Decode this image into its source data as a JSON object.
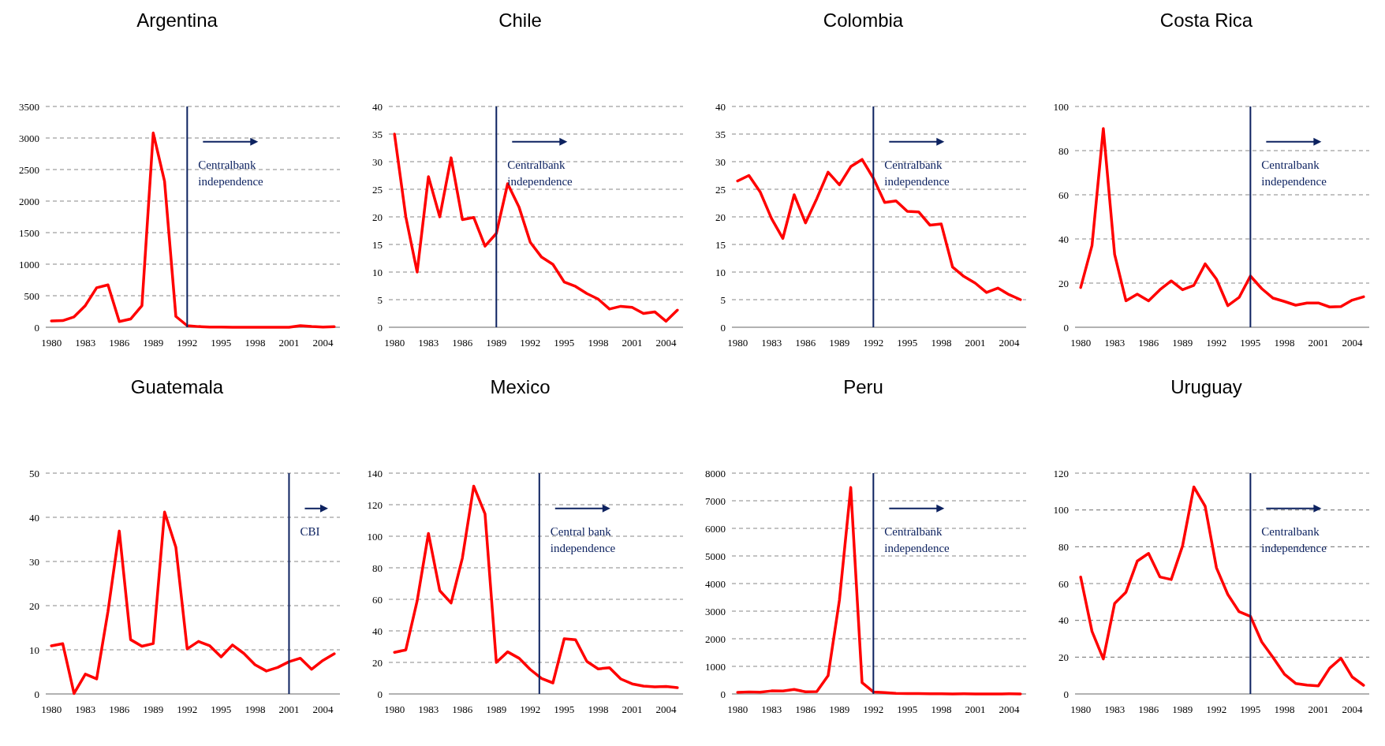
{
  "chart_data": [
    {
      "type": "line",
      "title": "Argentina",
      "x": [
        1980,
        1981,
        1982,
        1983,
        1984,
        1985,
        1986,
        1987,
        1988,
        1989,
        1990,
        1991,
        1992,
        1993,
        1994,
        1995,
        1996,
        1997,
        1998,
        1999,
        2000,
        2001,
        2002,
        2003,
        2004,
        2005
      ],
      "series": [
        {
          "color": "#ff0000",
          "values": [
            100,
            105,
            165,
            345,
            627,
            672,
            90,
            131,
            343,
            3080,
            2314,
            172,
            25,
            11,
            4,
            3,
            0,
            0,
            1,
            0,
            0,
            0,
            26,
            13,
            4,
            10
          ]
        }
      ],
      "xlim": [
        1979.5,
        2005.5
      ],
      "xticks": [
        1980,
        1983,
        1986,
        1989,
        1992,
        1995,
        1998,
        2001,
        2004
      ],
      "ylim": [
        0,
        3500
      ],
      "yticks": [
        0,
        500,
        1000,
        1500,
        2000,
        2500,
        3000,
        3500
      ],
      "grid": "y",
      "ref_lines": [
        {
          "axis": "x",
          "value": 1992,
          "label": "Centralbank independence",
          "color": "#0d2260"
        }
      ]
    },
    {
      "type": "line",
      "title": "Chile",
      "x": [
        1980,
        1981,
        1982,
        1983,
        1984,
        1985,
        1986,
        1987,
        1988,
        1989,
        1990,
        1991,
        1992,
        1993,
        1994,
        1995,
        1996,
        1997,
        1998,
        1999,
        2000,
        2001,
        2002,
        2003,
        2004,
        2005
      ],
      "series": [
        {
          "color": "#ff0000",
          "values": [
            35,
            20,
            10,
            27.3,
            20,
            30.7,
            19.5,
            19.9,
            14.7,
            17,
            26,
            21.8,
            15.4,
            12.7,
            11.4,
            8.2,
            7.4,
            6.1,
            5.1,
            3.3,
            3.8,
            3.6,
            2.5,
            2.8,
            1.1,
            3.1
          ]
        }
      ],
      "xlim": [
        1979.5,
        2005.5
      ],
      "xticks": [
        1980,
        1983,
        1986,
        1989,
        1992,
        1995,
        1998,
        2001,
        2004
      ],
      "ylim": [
        0,
        40
      ],
      "yticks": [
        0,
        5,
        10,
        15,
        20,
        25,
        30,
        35,
        40
      ],
      "grid": "y",
      "ref_lines": [
        {
          "axis": "x",
          "value": 1989,
          "label": "Centralbank independence",
          "color": "#0d2260"
        }
      ]
    },
    {
      "type": "line",
      "title": "Colombia",
      "x": [
        1980,
        1981,
        1982,
        1983,
        1984,
        1985,
        1986,
        1987,
        1988,
        1989,
        1990,
        1991,
        1992,
        1993,
        1994,
        1995,
        1996,
        1997,
        1998,
        1999,
        2000,
        2001,
        2002,
        2003,
        2004,
        2005
      ],
      "series": [
        {
          "color": "#ff0000",
          "values": [
            26.5,
            27.5,
            24.5,
            19.7,
            16.1,
            24,
            18.9,
            23.3,
            28.1,
            25.8,
            29.1,
            30.4,
            27,
            22.6,
            22.9,
            21,
            20.9,
            18.5,
            18.7,
            10.9,
            9.2,
            8,
            6.3,
            7.1,
            5.9,
            5
          ]
        }
      ],
      "xlim": [
        1979.5,
        2005.5
      ],
      "xticks": [
        1980,
        1983,
        1986,
        1989,
        1992,
        1995,
        1998,
        2001,
        2004
      ],
      "ylim": [
        0,
        40
      ],
      "yticks": [
        0,
        5,
        10,
        15,
        20,
        25,
        30,
        35,
        40
      ],
      "grid": "y",
      "ref_lines": [
        {
          "axis": "x",
          "value": 1992,
          "label": "Centralbank independence",
          "color": "#0d2260"
        }
      ]
    },
    {
      "type": "line",
      "title": "Costa Rica",
      "x": [
        1980,
        1981,
        1982,
        1983,
        1984,
        1985,
        1986,
        1987,
        1988,
        1989,
        1990,
        1991,
        1992,
        1993,
        1994,
        1995,
        1996,
        1997,
        1998,
        1999,
        2000,
        2001,
        2002,
        2003,
        2004,
        2005
      ],
      "series": [
        {
          "color": "#ff0000",
          "values": [
            18,
            37,
            90,
            33,
            12,
            15,
            12,
            17,
            21,
            17,
            19,
            28.7,
            21.8,
            9.8,
            13.5,
            23.2,
            17.5,
            13.2,
            11.7,
            10,
            11,
            11,
            9.2,
            9.4,
            12.3,
            13.8
          ]
        }
      ],
      "xlim": [
        1979.5,
        2005.5
      ],
      "xticks": [
        1980,
        1983,
        1986,
        1989,
        1992,
        1995,
        1998,
        2001,
        2004
      ],
      "ylim": [
        0,
        100
      ],
      "yticks": [
        0,
        20,
        40,
        60,
        80,
        100
      ],
      "grid": "y",
      "ref_lines": [
        {
          "axis": "x",
          "value": 1995,
          "label": "Centralbank independence",
          "color": "#0d2260"
        }
      ]
    },
    {
      "type": "line",
      "title": "Guatemala",
      "x": [
        1980,
        1981,
        1982,
        1983,
        1984,
        1985,
        1986,
        1987,
        1988,
        1989,
        1990,
        1991,
        1992,
        1993,
        1994,
        1995,
        1996,
        1997,
        1998,
        1999,
        2000,
        2001,
        2002,
        2003,
        2004,
        2005
      ],
      "series": [
        {
          "color": "#ff0000",
          "values": [
            10.9,
            11.4,
            0.1,
            4.5,
            3.4,
            18.7,
            36.9,
            12.3,
            10.8,
            11.4,
            41.2,
            33.2,
            10.2,
            11.9,
            10.9,
            8.4,
            11.1,
            9.2,
            6.6,
            5.2,
            6,
            7.3,
            8.1,
            5.6,
            7.6,
            9.1
          ]
        }
      ],
      "xlim": [
        1979.5,
        2005.5
      ],
      "xticks": [
        1980,
        1983,
        1986,
        1989,
        1992,
        1995,
        1998,
        2001,
        2004
      ],
      "ylim": [
        0,
        50
      ],
      "yticks": [
        0,
        10,
        20,
        30,
        40,
        50
      ],
      "grid": "y",
      "ref_lines": [
        {
          "axis": "x",
          "value": 2001,
          "label": "CBI",
          "color": "#0d2260"
        }
      ]
    },
    {
      "type": "line",
      "title": "Mexico",
      "x": [
        1980,
        1981,
        1982,
        1983,
        1984,
        1985,
        1986,
        1987,
        1988,
        1989,
        1990,
        1991,
        1992,
        1993,
        1994,
        1995,
        1996,
        1997,
        1998,
        1999,
        2000,
        2001,
        2002,
        2003,
        2004,
        2005
      ],
      "series": [
        {
          "color": "#ff0000",
          "values": [
            26.4,
            27.9,
            58.9,
            101.8,
            65.5,
            57.7,
            86.2,
            131.8,
            114.2,
            20,
            26.7,
            22.7,
            15.5,
            9.8,
            7,
            35,
            34.4,
            20.6,
            15.9,
            16.6,
            9.5,
            6.4,
            5,
            4.5,
            4.7,
            4
          ]
        }
      ],
      "xlim": [
        1979.5,
        2005.5
      ],
      "xticks": [
        1980,
        1983,
        1986,
        1989,
        1992,
        1995,
        1998,
        2001,
        2004
      ],
      "ylim": [
        0,
        140
      ],
      "yticks": [
        0,
        20,
        40,
        60,
        80,
        100,
        120,
        140
      ],
      "grid": "y",
      "ref_lines": [
        {
          "axis": "x",
          "value": 1992.8,
          "label": "Central bank independence",
          "color": "#0d2260"
        }
      ]
    },
    {
      "type": "line",
      "title": "Peru",
      "x": [
        1980,
        1981,
        1982,
        1983,
        1984,
        1985,
        1986,
        1987,
        1988,
        1989,
        1990,
        1991,
        1992,
        1993,
        1994,
        1995,
        1996,
        1997,
        1998,
        1999,
        2000,
        2001,
        2002,
        2003,
        2004,
        2005
      ],
      "series": [
        {
          "color": "#ff0000",
          "values": [
            59,
            75,
            64,
            111,
            110,
            163,
            78,
            86,
            667,
            3399,
            7482,
            409,
            73,
            48,
            24,
            11,
            12,
            9,
            7,
            3,
            4,
            2,
            0,
            2,
            4,
            2
          ]
        }
      ],
      "xlim": [
        1979.5,
        2005.5
      ],
      "xticks": [
        1980,
        1983,
        1986,
        1989,
        1992,
        1995,
        1998,
        2001,
        2004
      ],
      "ylim": [
        0,
        8000
      ],
      "yticks": [
        0,
        1000,
        2000,
        3000,
        4000,
        5000,
        6000,
        7000,
        8000
      ],
      "grid": "y",
      "ref_lines": [
        {
          "axis": "x",
          "value": 1992,
          "label": "Centralbank independence",
          "color": "#0d2260"
        }
      ]
    },
    {
      "type": "line",
      "title": "Uruguay",
      "x": [
        1980,
        1981,
        1982,
        1983,
        1984,
        1985,
        1986,
        1987,
        1988,
        1989,
        1990,
        1991,
        1992,
        1993,
        1994,
        1995,
        1996,
        1997,
        1998,
        1999,
        2000,
        2001,
        2002,
        2003,
        2004,
        2005
      ],
      "series": [
        {
          "color": "#ff0000",
          "values": [
            63.5,
            34,
            19,
            49.2,
            55.3,
            72.2,
            76.4,
            63.6,
            62.2,
            80.4,
            112.5,
            102,
            68.5,
            54.1,
            44.7,
            42.2,
            28.3,
            19.8,
            10.8,
            5.7,
            4.8,
            4.4,
            14,
            19.4,
            9.2,
            4.7
          ]
        }
      ],
      "xlim": [
        1979.5,
        2005.5
      ],
      "xticks": [
        1980,
        1983,
        1986,
        1989,
        1992,
        1995,
        1998,
        2001,
        2004
      ],
      "ylim": [
        0,
        120
      ],
      "yticks": [
        0,
        20,
        40,
        60,
        80,
        100,
        120
      ],
      "grid": "y",
      "ref_lines": [
        {
          "axis": "x",
          "value": 1995,
          "label": "Centralbank independence",
          "color": "#0d2260"
        }
      ]
    }
  ]
}
